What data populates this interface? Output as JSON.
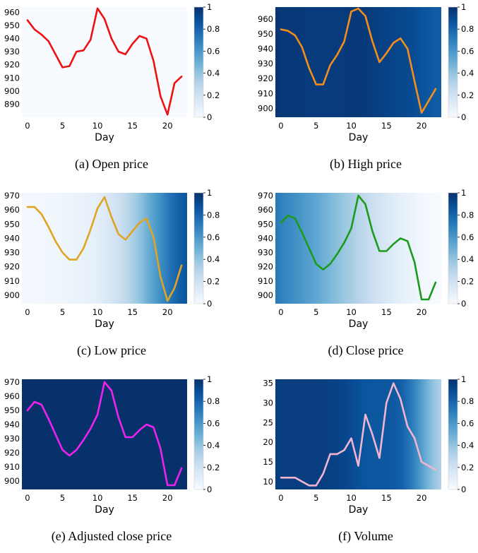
{
  "figure": {
    "x_days": [
      0,
      1,
      2,
      3,
      4,
      5,
      6,
      7,
      8,
      9,
      10,
      11,
      12,
      13,
      14,
      15,
      16,
      17,
      18,
      19,
      20,
      21,
      22
    ],
    "colorbar_ticks": [
      "0",
      "0.2",
      "0.4",
      "0.6",
      "0.8",
      "1"
    ],
    "colorbar_colors": [
      "#f7fbff",
      "#deebf7",
      "#c6dbef",
      "#9ecae1",
      "#6baed6",
      "#4292c6",
      "#2171b5",
      "#08519c",
      "#08306b"
    ]
  },
  "chart_data": [
    {
      "type": "line",
      "caption": "(a)  Open price",
      "xlabel": "Day",
      "xticks": [
        "0",
        "5",
        "10",
        "15",
        "20"
      ],
      "xlim": [
        -0.8,
        22.8
      ],
      "ylim": [
        880,
        964
      ],
      "yticks": [
        "890",
        "900",
        "910",
        "920",
        "930",
        "940",
        "950",
        "960"
      ],
      "line_color": "#ee1111",
      "heatmap_weights": [
        0,
        0,
        0,
        0,
        0,
        0,
        0,
        0,
        0,
        0,
        0,
        0,
        0,
        0,
        0,
        0,
        0,
        0,
        0,
        0,
        0,
        0,
        0
      ],
      "series": [
        {
          "name": "Open price",
          "values": [
            954,
            947,
            943,
            938,
            928,
            918,
            919,
            930,
            931,
            939,
            963,
            955,
            940,
            930,
            928,
            936,
            942,
            940,
            923,
            896,
            882,
            906,
            911
          ]
        }
      ]
    },
    {
      "type": "line",
      "caption": "(b)  High price",
      "xlabel": "Day",
      "xticks": [
        "0",
        "5",
        "10",
        "15",
        "20"
      ],
      "xlim": [
        -0.8,
        22.8
      ],
      "ylim": [
        894,
        968
      ],
      "yticks": [
        "900",
        "910",
        "920",
        "930",
        "940",
        "950",
        "960"
      ],
      "line_color": "#f28e1c",
      "heatmap_weights": [
        0.98,
        0.97,
        0.97,
        0.97,
        0.96,
        0.96,
        0.96,
        0.96,
        0.96,
        0.96,
        0.97,
        0.97,
        0.96,
        0.95,
        0.94,
        0.93,
        0.92,
        0.91,
        0.9,
        0.88,
        0.86,
        0.84,
        0.83
      ],
      "series": [
        {
          "name": "High price",
          "values": [
            953,
            952,
            949,
            941,
            927,
            916,
            916,
            929,
            936,
            945,
            965,
            967,
            962,
            945,
            931,
            937,
            944,
            947,
            940,
            918,
            897,
            905,
            913
          ]
        }
      ]
    },
    {
      "type": "line",
      "caption": "(c)  Low price",
      "xlabel": "Day",
      "xticks": [
        "0",
        "5",
        "10",
        "15",
        "20"
      ],
      "xlim": [
        -0.8,
        22.8
      ],
      "ylim": [
        894,
        972
      ],
      "yticks": [
        "900",
        "910",
        "920",
        "930",
        "940",
        "950",
        "960",
        "970"
      ],
      "line_color": "#e0a422",
      "heatmap_weights": [
        0.02,
        0.02,
        0.03,
        0.03,
        0.04,
        0.04,
        0.05,
        0.06,
        0.07,
        0.08,
        0.1,
        0.13,
        0.17,
        0.22,
        0.28,
        0.35,
        0.43,
        0.52,
        0.6,
        0.68,
        0.76,
        0.82,
        0.86
      ],
      "series": [
        {
          "name": "Low price",
          "values": [
            962,
            962,
            957,
            948,
            938,
            930,
            925,
            925,
            933,
            946,
            961,
            969,
            955,
            943,
            939,
            945,
            951,
            954,
            941,
            913,
            896,
            905,
            921
          ]
        }
      ]
    },
    {
      "type": "line",
      "caption": "(d)  Close price",
      "xlabel": "Day",
      "xticks": [
        "0",
        "5",
        "10",
        "15",
        "20"
      ],
      "xlim": [
        -0.8,
        22.8
      ],
      "ylim": [
        894,
        972
      ],
      "yticks": [
        "900",
        "910",
        "920",
        "930",
        "940",
        "950",
        "960",
        "970"
      ],
      "line_color": "#1c9a1c",
      "heatmap_weights": [
        0.72,
        0.68,
        0.65,
        0.62,
        0.58,
        0.55,
        0.51,
        0.47,
        0.43,
        0.39,
        0.35,
        0.3,
        0.26,
        0.22,
        0.18,
        0.14,
        0.11,
        0.08,
        0.06,
        0.04,
        0.02,
        0.01,
        0
      ],
      "series": [
        {
          "name": "Close price",
          "values": [
            951,
            956,
            954,
            944,
            933,
            922,
            918,
            922,
            929,
            937,
            947,
            970,
            964,
            945,
            931,
            931,
            936,
            940,
            938,
            923,
            897,
            897,
            909
          ]
        }
      ]
    },
    {
      "type": "line",
      "caption": "(e)  Adjusted close price",
      "xlabel": "Day",
      "xticks": [
        "0",
        "5",
        "10",
        "15",
        "20"
      ],
      "xlim": [
        -0.8,
        22.8
      ],
      "ylim": [
        894,
        972
      ],
      "yticks": [
        "900",
        "910",
        "920",
        "930",
        "940",
        "950",
        "960",
        "970"
      ],
      "line_color": "#ee22ee",
      "heatmap_weights": [
        1,
        1,
        1,
        1,
        1,
        1,
        1,
        1,
        1,
        1,
        1,
        1,
        1,
        1,
        1,
        1,
        1,
        1,
        1,
        1,
        1,
        1,
        1
      ],
      "series": [
        {
          "name": "Adjusted close price",
          "values": [
            950,
            956,
            954,
            944,
            933,
            922,
            918,
            922,
            929,
            937,
            947,
            970,
            964,
            945,
            931,
            931,
            936,
            940,
            938,
            923,
            897,
            897,
            909
          ]
        }
      ]
    },
    {
      "type": "line",
      "caption": "(f)  Volume",
      "xlabel": "Day",
      "xticks": [
        "0",
        "5",
        "10",
        "15",
        "20"
      ],
      "xlim": [
        -0.8,
        22.8
      ],
      "ylim": [
        8,
        36
      ],
      "yticks": [
        "10",
        "15",
        "20",
        "25",
        "30",
        "35"
      ],
      "line_color": "#f2b5d0",
      "heatmap_weights": [
        0.95,
        0.95,
        0.95,
        0.95,
        0.95,
        0.95,
        0.95,
        0.94,
        0.93,
        0.92,
        0.9,
        0.88,
        0.86,
        0.85,
        0.85,
        0.85,
        0.84,
        0.8,
        0.72,
        0.62,
        0.5,
        0.4,
        0.32
      ],
      "series": [
        {
          "name": "Volume",
          "values": [
            11,
            11,
            11,
            10,
            9,
            9,
            12,
            17,
            17,
            18,
            21,
            14,
            27,
            22,
            16,
            30,
            35,
            31,
            24,
            21,
            15,
            14,
            13
          ]
        }
      ]
    }
  ]
}
